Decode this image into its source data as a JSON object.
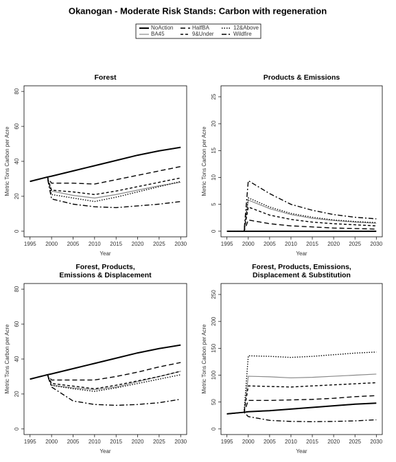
{
  "title": "Okanogan  - Moderate Risk Stands: Carbon with regeneration",
  "chart_data": [
    {
      "type": "line",
      "title": [
        "Forest"
      ],
      "xlabel": "Year",
      "ylabel": "Metric Tons Carbon per Acre",
      "x": [
        1995,
        1999,
        2000,
        2005,
        2010,
        2015,
        2020,
        2025,
        2030
      ],
      "xlim": [
        1993.6,
        2031.4
      ],
      "xticks": [
        1995,
        2000,
        2005,
        2010,
        2015,
        2020,
        2025,
        2030
      ],
      "ylim": [
        -3.2,
        83.2
      ],
      "yticks": [
        0,
        20,
        40,
        60,
        80
      ],
      "series": [
        {
          "name": "NoAction",
          "color": "#000000",
          "dash": "none",
          "width": 2,
          "values": [
            28.5,
            31,
            31.5,
            34.5,
            37.5,
            40.5,
            43.5,
            46,
            48
          ]
        },
        {
          "name": "BA45",
          "color": "#888888",
          "dash": "none",
          "width": 1.2,
          "values": [
            28.5,
            31,
            23,
            20.5,
            19,
            21,
            23.5,
            26,
            28
          ]
        },
        {
          "name": "HalfBA",
          "color": "#000000",
          "dash": "7,4",
          "width": 1.4,
          "values": [
            28.5,
            31,
            27.5,
            27.5,
            27,
            29.5,
            32,
            34.5,
            37
          ]
        },
        {
          "name": "9&Under",
          "color": "#000000",
          "dash": "4,3",
          "width": 1.4,
          "values": [
            28.5,
            31,
            23.5,
            22.5,
            21,
            23,
            25.5,
            28,
            30.5
          ]
        },
        {
          "name": "12&Above",
          "color": "#000000",
          "dash": "1.5,2",
          "width": 1.4,
          "values": [
            28.5,
            31,
            21,
            19,
            17,
            19.5,
            22.5,
            25.5,
            28.5
          ]
        },
        {
          "name": "Wildfire",
          "color": "#000000",
          "dash": "7,3,2,3",
          "width": 1.4,
          "values": [
            28.5,
            31,
            18.5,
            15.5,
            14,
            13.5,
            14.5,
            15.5,
            17
          ]
        }
      ]
    },
    {
      "type": "line",
      "title": [
        "Products & Emissions"
      ],
      "xlabel": "Year",
      "ylabel": "Metric Tons Carbon per Acre",
      "x": [
        1995,
        1999,
        2000,
        2005,
        2010,
        2015,
        2020,
        2025,
        2030
      ],
      "xlim": [
        1993.6,
        2031.4
      ],
      "xticks": [
        1995,
        2000,
        2005,
        2010,
        2015,
        2020,
        2025,
        2030
      ],
      "ylim": [
        -1.04,
        27.04
      ],
      "yticks": [
        0,
        5,
        10,
        15,
        20,
        25
      ],
      "series": [
        {
          "name": "NoAction",
          "color": "#000000",
          "dash": "none",
          "width": 2,
          "values": [
            0,
            0,
            0,
            0,
            0,
            0,
            0,
            0,
            0
          ]
        },
        {
          "name": "BA45",
          "color": "#888888",
          "dash": "none",
          "width": 1.2,
          "values": [
            0,
            0,
            5.8,
            4.2,
            3.1,
            2.4,
            2,
            1.7,
            1.5
          ]
        },
        {
          "name": "HalfBA",
          "color": "#000000",
          "dash": "7,4",
          "width": 1.4,
          "values": [
            0,
            0,
            2.1,
            1.4,
            1,
            0.8,
            0.6,
            0.5,
            0.4
          ]
        },
        {
          "name": "9&Under",
          "color": "#000000",
          "dash": "4,3",
          "width": 1.4,
          "values": [
            0,
            0,
            4.5,
            3,
            2.2,
            1.7,
            1.4,
            1.2,
            1
          ]
        },
        {
          "name": "12&Above",
          "color": "#000000",
          "dash": "1.5,2",
          "width": 1.4,
          "values": [
            0,
            0,
            6.2,
            4.5,
            3.3,
            2.6,
            2.1,
            1.8,
            1.6
          ]
        },
        {
          "name": "Wildfire",
          "color": "#000000",
          "dash": "7,3,2,3",
          "width": 1.4,
          "values": [
            0,
            0,
            9.4,
            7,
            5,
            3.9,
            3.1,
            2.6,
            2.3
          ]
        }
      ]
    },
    {
      "type": "line",
      "title": [
        "Forest, Products,",
        "Emissions & Displacement"
      ],
      "xlabel": "Year",
      "ylabel": "Metric Tons Carbon per Acre",
      "x": [
        1995,
        1999,
        2000,
        2005,
        2010,
        2015,
        2020,
        2025,
        2030
      ],
      "xlim": [
        1993.6,
        2031.4
      ],
      "xticks": [
        1995,
        2000,
        2005,
        2010,
        2015,
        2020,
        2025,
        2030
      ],
      "ylim": [
        -3.2,
        83.2
      ],
      "yticks": [
        0,
        20,
        40,
        60,
        80
      ],
      "series": [
        {
          "name": "NoAction",
          "color": "#000000",
          "dash": "none",
          "width": 2,
          "values": [
            28.5,
            31,
            31.5,
            34.5,
            37.5,
            40.5,
            43.5,
            46,
            48
          ]
        },
        {
          "name": "BA45",
          "color": "#888888",
          "dash": "none",
          "width": 1.2,
          "values": [
            28.5,
            31,
            25,
            23.5,
            22.5,
            24,
            27,
            30,
            33
          ]
        },
        {
          "name": "HalfBA",
          "color": "#000000",
          "dash": "7,4",
          "width": 1.4,
          "values": [
            28.5,
            31,
            28,
            28,
            28,
            30,
            32.5,
            35.5,
            38
          ]
        },
        {
          "name": "9&Under",
          "color": "#000000",
          "dash": "4,3",
          "width": 1.4,
          "values": [
            28.5,
            31,
            26,
            24.5,
            23,
            25,
            27.5,
            30,
            33
          ]
        },
        {
          "name": "12&Above",
          "color": "#000000",
          "dash": "1.5,2",
          "width": 1.4,
          "values": [
            28.5,
            31,
            25,
            23,
            21.5,
            23.5,
            26,
            28.5,
            31
          ]
        },
        {
          "name": "Wildfire",
          "color": "#000000",
          "dash": "7,3,2,3",
          "width": 1.4,
          "values": [
            28.5,
            31,
            24,
            16,
            14,
            13.5,
            14,
            15,
            17
          ]
        }
      ]
    },
    {
      "type": "line",
      "title": [
        "Forest, Products, Emissions,",
        "Displacement & Substitution"
      ],
      "xlabel": "Year",
      "ylabel": "Metric Tons Carbon per Acre",
      "x": [
        1995,
        1999,
        2000,
        2005,
        2010,
        2015,
        2020,
        2025,
        2030
      ],
      "xlim": [
        1993.6,
        2031.4
      ],
      "xticks": [
        1995,
        2000,
        2005,
        2010,
        2015,
        2020,
        2025,
        2030
      ],
      "ylim": [
        -10.4,
        270.4
      ],
      "yticks": [
        0,
        50,
        100,
        150,
        200,
        250
      ],
      "series": [
        {
          "name": "NoAction",
          "color": "#000000",
          "dash": "none",
          "width": 2,
          "values": [
            28,
            31,
            32,
            34,
            37,
            40,
            43,
            46,
            48
          ]
        },
        {
          "name": "BA45",
          "color": "#888888",
          "dash": "none",
          "width": 1.2,
          "values": [
            28,
            31,
            98,
            97,
            95,
            96,
            98,
            100,
            102
          ]
        },
        {
          "name": "HalfBA",
          "color": "#000000",
          "dash": "7,4",
          "width": 1.4,
          "values": [
            28,
            31,
            53,
            53,
            54,
            55,
            57,
            60,
            62
          ]
        },
        {
          "name": "9&Under",
          "color": "#000000",
          "dash": "4,3",
          "width": 1.4,
          "values": [
            28,
            31,
            80,
            79,
            78,
            80,
            82,
            84,
            86
          ]
        },
        {
          "name": "12&Above",
          "color": "#000000",
          "dash": "1.5,2",
          "width": 1.4,
          "values": [
            28,
            31,
            136,
            135,
            133,
            135,
            138,
            141,
            143
          ]
        },
        {
          "name": "Wildfire",
          "color": "#000000",
          "dash": "7,3,2,3",
          "width": 1.4,
          "values": [
            28,
            31,
            23,
            16,
            14,
            13.5,
            14,
            15,
            17
          ]
        }
      ]
    }
  ]
}
